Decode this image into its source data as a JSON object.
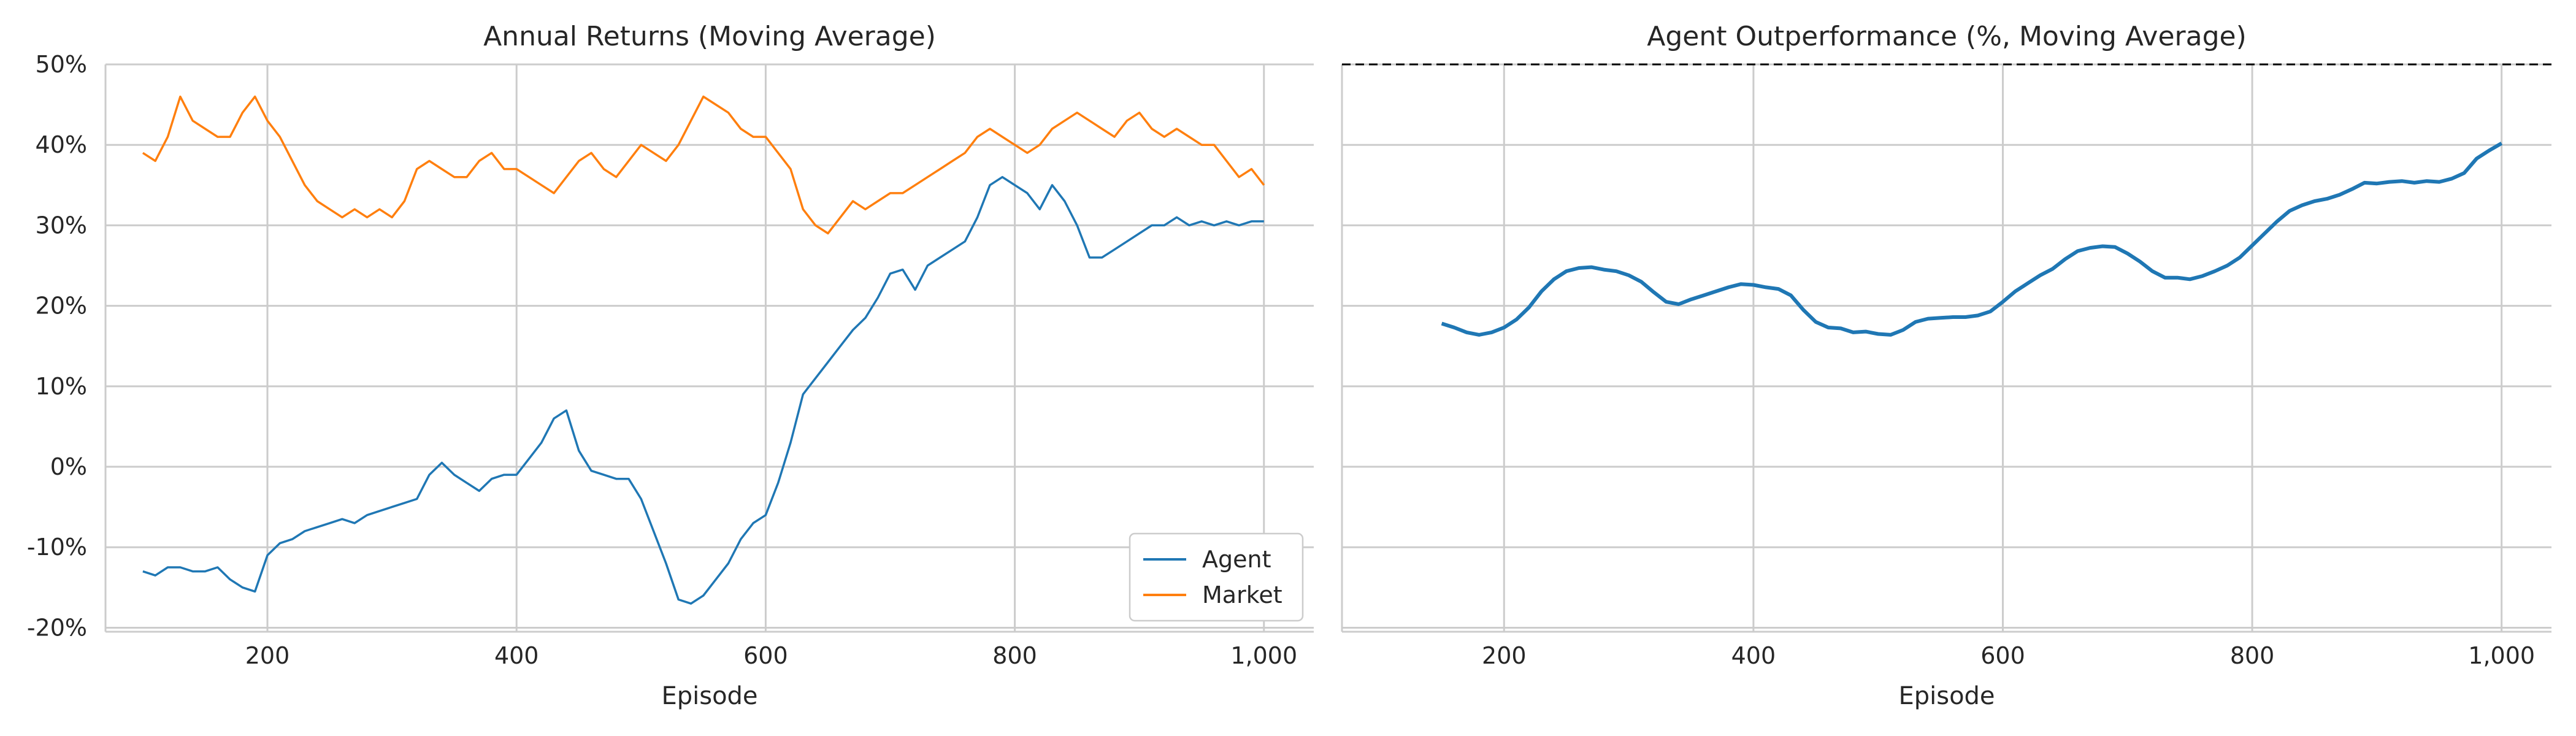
{
  "chart_data": [
    {
      "type": "line",
      "title": "Annual Returns (Moving Average)",
      "xlabel": "Episode",
      "ylabel": "",
      "xlim": [
        70,
        1040
      ],
      "ylim": [
        -20.5,
        50
      ],
      "xticks": [
        200,
        400,
        600,
        800,
        1000
      ],
      "xtick_labels": [
        "200",
        "400",
        "600",
        "800",
        "1,000"
      ],
      "yticks": [
        -20,
        -10,
        0,
        10,
        20,
        30,
        40,
        50
      ],
      "ytick_labels": [
        "-20%",
        "-10%",
        "0%",
        "10%",
        "20%",
        "30%",
        "40%",
        "50%"
      ],
      "grid": true,
      "legend": {
        "position": "lower-right",
        "entries": [
          "Agent",
          "Market"
        ]
      },
      "series": [
        {
          "name": "Agent",
          "color": "#1f77b4",
          "x": [
            100,
            110,
            120,
            130,
            140,
            150,
            160,
            170,
            180,
            190,
            200,
            210,
            220,
            230,
            240,
            250,
            260,
            270,
            280,
            290,
            300,
            310,
            320,
            330,
            340,
            350,
            360,
            370,
            380,
            390,
            400,
            410,
            420,
            430,
            440,
            450,
            460,
            470,
            480,
            490,
            500,
            510,
            520,
            530,
            540,
            550,
            560,
            570,
            580,
            590,
            600,
            610,
            620,
            630,
            640,
            650,
            660,
            670,
            680,
            690,
            700,
            710,
            720,
            730,
            740,
            750,
            760,
            770,
            780,
            790,
            800,
            810,
            820,
            830,
            840,
            850,
            860,
            870,
            880,
            890,
            900,
            910,
            920,
            930,
            940,
            950,
            960,
            970,
            980,
            990,
            1000
          ],
          "values": [
            -13,
            -13.5,
            -12.5,
            -12.5,
            -13,
            -13,
            -12.5,
            -14,
            -15,
            -15.5,
            -11,
            -9.5,
            -9,
            -8,
            -7.5,
            -7,
            -6.5,
            -7,
            -6,
            -5.5,
            -5,
            -4.5,
            -4,
            -1,
            0.5,
            -1,
            -2,
            -3,
            -1.5,
            -1,
            -1,
            1,
            3,
            6,
            7,
            2,
            -0.5,
            -1,
            -1.5,
            -1.5,
            -4,
            -8,
            -12,
            -16.5,
            -17,
            -16,
            -14,
            -12,
            -9,
            -7,
            -6,
            -2,
            3,
            9,
            11,
            13,
            15,
            17,
            18.5,
            21,
            24,
            24.5,
            22,
            25,
            26,
            27,
            28,
            31,
            35,
            36,
            35,
            34,
            32,
            35,
            33,
            30,
            26,
            26,
            27,
            28,
            29,
            30,
            30,
            31,
            30,
            30.5,
            30,
            30.5,
            30,
            30.5,
            30.5
          ]
        },
        {
          "name": "Market",
          "color": "#ff7f0e",
          "x": [
            100,
            110,
            120,
            130,
            140,
            150,
            160,
            170,
            180,
            190,
            200,
            210,
            220,
            230,
            240,
            250,
            260,
            270,
            280,
            290,
            300,
            310,
            320,
            330,
            340,
            350,
            360,
            370,
            380,
            390,
            400,
            410,
            420,
            430,
            440,
            450,
            460,
            470,
            480,
            490,
            500,
            510,
            520,
            530,
            540,
            550,
            560,
            570,
            580,
            590,
            600,
            610,
            620,
            630,
            640,
            650,
            660,
            670,
            680,
            690,
            700,
            710,
            720,
            730,
            740,
            750,
            760,
            770,
            780,
            790,
            800,
            810,
            820,
            830,
            840,
            850,
            860,
            870,
            880,
            890,
            900,
            910,
            920,
            930,
            940,
            950,
            960,
            970,
            980,
            990,
            1000
          ],
          "values": [
            39,
            38,
            41,
            46,
            43,
            42,
            41,
            41,
            44,
            46,
            43,
            41,
            38,
            35,
            33,
            32,
            31,
            32,
            31,
            32,
            31,
            33,
            37,
            38,
            37,
            36,
            36,
            38,
            39,
            37,
            37,
            36,
            35,
            34,
            36,
            38,
            39,
            37,
            36,
            38,
            40,
            39,
            38,
            40,
            43,
            46,
            45,
            44,
            42,
            41,
            41,
            39,
            37,
            32,
            30,
            29,
            31,
            33,
            32,
            33,
            34,
            34,
            35,
            36,
            37,
            38,
            39,
            41,
            42,
            41,
            40,
            39,
            40,
            42,
            43,
            44,
            43,
            42,
            41,
            43,
            44,
            42,
            41,
            42,
            41,
            40,
            40,
            38,
            36,
            37,
            35
          ]
        }
      ]
    },
    {
      "type": "line",
      "title": "Agent Outperformance (%, Moving Average)",
      "xlabel": "Episode",
      "ylabel": "",
      "xlim": [
        70,
        1040
      ],
      "ylim": [
        -20.5,
        50
      ],
      "xticks": [
        200,
        400,
        600,
        800,
        1000
      ],
      "xtick_labels": [
        "200",
        "400",
        "600",
        "800",
        "1,000"
      ],
      "grid": true,
      "reference_line": {
        "y": 50,
        "style": "dashed",
        "color": "#000000"
      },
      "series": [
        {
          "color": "#1f77b4",
          "x": [
            150,
            160,
            170,
            180,
            190,
            200,
            210,
            220,
            230,
            240,
            250,
            260,
            270,
            280,
            290,
            300,
            310,
            320,
            330,
            340,
            350,
            360,
            370,
            380,
            390,
            400,
            410,
            420,
            430,
            440,
            450,
            460,
            470,
            480,
            490,
            500,
            510,
            520,
            530,
            540,
            550,
            560,
            570,
            580,
            590,
            600,
            610,
            620,
            630,
            640,
            650,
            660,
            670,
            680,
            690,
            700,
            710,
            720,
            730,
            740,
            750,
            760,
            770,
            780,
            790,
            800,
            810,
            820,
            830,
            840,
            850,
            860,
            870,
            880,
            890,
            900,
            910,
            920,
            930,
            940,
            950,
            960,
            970,
            980,
            990,
            1000
          ],
          "values": [
            17.8,
            17.3,
            16.7,
            16.4,
            16.7,
            17.3,
            18.3,
            19.8,
            21.8,
            23.3,
            24.3,
            24.7,
            24.8,
            24.5,
            24.3,
            23.8,
            23.0,
            21.7,
            20.5,
            20.2,
            20.8,
            21.3,
            21.8,
            22.3,
            22.7,
            22.6,
            22.3,
            22.1,
            21.3,
            19.5,
            18.0,
            17.3,
            17.2,
            16.7,
            16.8,
            16.5,
            16.4,
            17.0,
            18.0,
            18.4,
            18.5,
            18.6,
            18.6,
            18.8,
            19.3,
            20.5,
            21.8,
            22.8,
            23.8,
            24.6,
            25.8,
            26.8,
            27.2,
            27.4,
            27.3,
            26.5,
            25.5,
            24.3,
            23.5,
            23.5,
            23.3,
            23.7,
            24.3,
            25.0,
            26.0,
            27.5,
            29.0,
            30.5,
            31.8,
            32.5,
            33.0,
            33.3,
            33.8,
            34.5,
            35.3,
            35.2,
            35.4,
            35.5,
            35.3,
            35.5,
            35.4,
            35.8,
            36.5,
            38.3,
            39.3,
            40.2
          ]
        }
      ]
    }
  ]
}
